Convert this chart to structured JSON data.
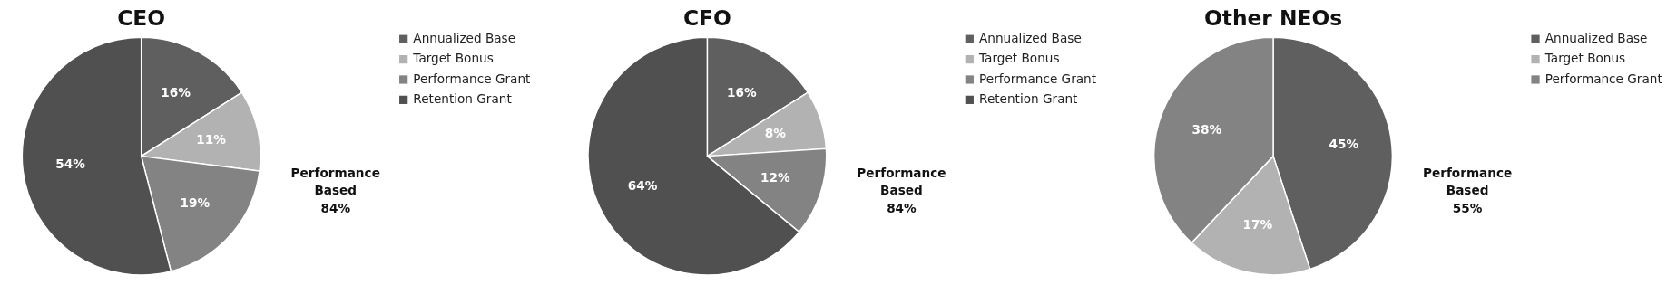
{
  "chart_data": [
    {
      "type": "pie",
      "title": "CEO",
      "categories": [
        "Annualized Base",
        "Target Bonus",
        "Performance Grant",
        "Retention Grant"
      ],
      "values": [
        16,
        11,
        19,
        54
      ],
      "value_labels": [
        "16%",
        "11%",
        "19%",
        "54%"
      ],
      "colors": [
        "#5f5f5f",
        "#b2b2b2",
        "#838383",
        "#505050"
      ],
      "legend": "right",
      "annotations": [
        "Performance Based 84%"
      ]
    },
    {
      "type": "pie",
      "title": "CFO",
      "categories": [
        "Annualized Base",
        "Target Bonus",
        "Performance Grant",
        "Retention Grant"
      ],
      "values": [
        16,
        8,
        12,
        64
      ],
      "value_labels": [
        "16%",
        "8%",
        "12%",
        "64%"
      ],
      "colors": [
        "#5f5f5f",
        "#b2b2b2",
        "#838383",
        "#505050"
      ],
      "legend": "right",
      "annotations": [
        "Performance Based 84%"
      ]
    },
    {
      "type": "pie",
      "title": "Other NEOs",
      "categories": [
        "Annualized Base",
        "Target Bonus",
        "Performance Grant"
      ],
      "values": [
        45,
        17,
        38
      ],
      "value_labels": [
        "45%",
        "17%",
        "38%"
      ],
      "colors": [
        "#5f5f5f",
        "#b2b2b2",
        "#838383"
      ],
      "legend": "right",
      "annotations": [
        "Performance Based 55%"
      ]
    }
  ]
}
